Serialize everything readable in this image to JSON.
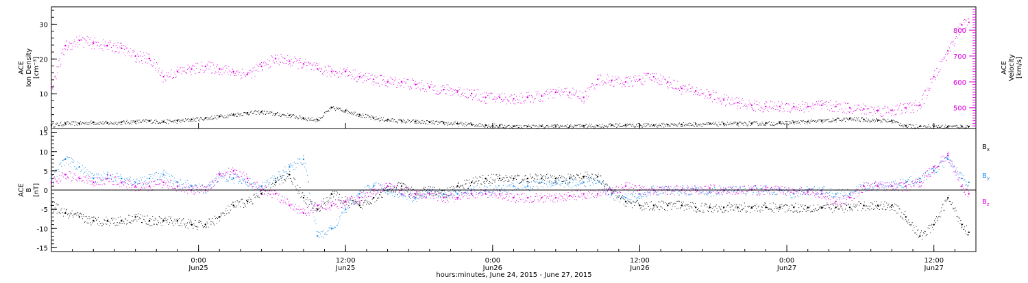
{
  "chart_data": [
    {
      "type": "scatter",
      "panel": "top",
      "ylabel_left": [
        "ACE",
        "Ion Density",
        "[cm⁻³]"
      ],
      "ylabel_right": [
        "ACE",
        "Velocity",
        "[km/s]"
      ],
      "ylim_left": [
        0,
        35
      ],
      "yticks_left": [
        0,
        10,
        20,
        30
      ],
      "ylim_right": [
        420,
        890
      ],
      "yticks_right": [
        500,
        600,
        700,
        800
      ],
      "series": [
        {
          "axis": "left",
          "color": "#000000",
          "x": [
            0,
            2,
            4,
            6,
            8,
            10,
            12,
            14,
            16,
            18,
            20,
            22,
            24,
            26,
            28,
            30,
            32,
            34,
            36,
            38,
            40,
            42,
            44,
            46,
            48,
            50,
            52,
            54,
            56,
            58,
            60,
            62,
            64,
            66,
            68,
            70,
            72,
            74,
            76,
            78,
            80,
            82,
            84,
            86,
            88,
            90,
            92,
            94,
            96,
            98,
            100,
            102,
            104,
            106,
            108,
            110,
            112,
            114,
            116,
            118,
            120,
            122,
            124,
            126,
            128,
            130,
            131
          ],
          "y": [
            1.0,
            1.5,
            1.5,
            1.8,
            1.6,
            1.8,
            2.0,
            2.2,
            2.0,
            2.2,
            2.6,
            3.0,
            3.5,
            4.0,
            4.5,
            4.8,
            4.2,
            3.8,
            3.0,
            2.5,
            6.0,
            5.2,
            4.0,
            3.0,
            2.5,
            2.2,
            2.0,
            1.8,
            1.6,
            1.4,
            1.2,
            1.0,
            0.8,
            0.6,
            0.6,
            0.6,
            0.7,
            0.7,
            0.8,
            0.8,
            1.0,
            1.0,
            1.0,
            1.0,
            1.1,
            1.2,
            1.3,
            1.3,
            1.4,
            1.4,
            1.5,
            1.5,
            1.6,
            1.8,
            2.0,
            2.2,
            2.5,
            2.8,
            2.6,
            2.4,
            2.2,
            0.8,
            0.6,
            0.6,
            0.6,
            0.6,
            0.6
          ]
        },
        {
          "axis": "right",
          "color": "#e000e0",
          "x": [
            0,
            2,
            4,
            6,
            8,
            10,
            12,
            14,
            16,
            18,
            20,
            22,
            24,
            26,
            28,
            30,
            32,
            34,
            36,
            38,
            40,
            42,
            44,
            46,
            48,
            50,
            52,
            54,
            56,
            58,
            60,
            62,
            64,
            66,
            68,
            70,
            72,
            74,
            76,
            78,
            80,
            82,
            84,
            86,
            88,
            90,
            92,
            94,
            96,
            98,
            100,
            102,
            104,
            106,
            108,
            110,
            112,
            114,
            116,
            118,
            120,
            122,
            124,
            126,
            128,
            130,
            131
          ],
          "y": [
            580,
            740,
            760,
            750,
            740,
            730,
            700,
            690,
            620,
            640,
            650,
            660,
            650,
            640,
            630,
            660,
            690,
            680,
            670,
            650,
            640,
            640,
            620,
            610,
            600,
            600,
            590,
            580,
            570,
            565,
            555,
            540,
            540,
            535,
            540,
            545,
            560,
            560,
            540,
            610,
            605,
            600,
            610,
            620,
            600,
            575,
            565,
            550,
            530,
            520,
            510,
            505,
            505,
            505,
            505,
            510,
            505,
            500,
            495,
            490,
            490,
            500,
            510,
            620,
            720,
            820,
            830
          ]
        }
      ]
    },
    {
      "type": "scatter",
      "panel": "bottom",
      "ylabel_left": [
        "ACE",
        "B",
        "[nT]"
      ],
      "ylim_left": [
        -16,
        16
      ],
      "yticks_left": [
        -15,
        -10,
        -5,
        0,
        5,
        10,
        15
      ],
      "legend": [
        "Bx",
        "By",
        "Bz"
      ],
      "legend_position": "right",
      "series": [
        {
          "name": "Bx",
          "color": "#000000",
          "x": [
            0,
            2,
            4,
            6,
            8,
            10,
            12,
            14,
            16,
            18,
            20,
            22,
            24,
            26,
            28,
            30,
            32,
            34,
            36,
            38,
            40,
            42,
            44,
            46,
            48,
            50,
            52,
            54,
            56,
            58,
            60,
            62,
            64,
            66,
            68,
            70,
            72,
            74,
            76,
            78,
            80,
            82,
            84,
            86,
            88,
            90,
            92,
            94,
            96,
            98,
            100,
            102,
            104,
            106,
            108,
            110,
            112,
            114,
            116,
            118,
            120,
            122,
            124,
            126,
            128,
            130,
            131
          ],
          "y": [
            -4,
            -6,
            -7,
            -8,
            -8,
            -8,
            -7,
            -8,
            -8,
            -8,
            -9,
            -9,
            -7,
            -4,
            -3,
            -1,
            2,
            4,
            -2,
            -5,
            -1,
            -3,
            -4,
            -2,
            0,
            1,
            -1,
            0,
            -1,
            1,
            2,
            3,
            3,
            3,
            3,
            3,
            3,
            3,
            3.5,
            3.5,
            -1,
            -3,
            -4,
            -4,
            -4,
            -4,
            -4.5,
            -4.5,
            -4.5,
            -4.5,
            -4.5,
            -4.5,
            -4.5,
            -4.5,
            -4.5,
            -4.5,
            -4.5,
            -4.5,
            -4,
            -4,
            -4,
            -7,
            -12,
            -9,
            -2,
            -9,
            -11
          ]
        },
        {
          "name": "By",
          "color": "#1e8ce8",
          "x": [
            0,
            2,
            4,
            6,
            8,
            10,
            12,
            14,
            16,
            18,
            20,
            22,
            24,
            26,
            28,
            30,
            32,
            34,
            36,
            38,
            40,
            42,
            44,
            46,
            48,
            50,
            52,
            54,
            56,
            58,
            60,
            62,
            64,
            66,
            68,
            70,
            72,
            74,
            76,
            78,
            80,
            82,
            84,
            86,
            88,
            90,
            92,
            94,
            96,
            98,
            100,
            102,
            104,
            106,
            108,
            110,
            112,
            114,
            116,
            118,
            120,
            122,
            124,
            126,
            128,
            130,
            131
          ],
          "y": [
            3,
            8,
            6,
            3,
            4,
            3,
            2,
            3,
            4,
            2,
            1,
            0,
            4,
            3,
            2,
            1,
            3,
            6,
            8,
            -12,
            -10,
            -5,
            -1,
            1,
            0,
            -1,
            -2,
            0,
            -1,
            -1,
            0,
            0,
            0,
            1,
            1,
            2,
            2,
            2,
            2,
            2.5,
            -1,
            -2,
            -1,
            0,
            0,
            0,
            0,
            -0.5,
            0,
            0,
            0,
            0,
            0,
            -1,
            0,
            0,
            -1,
            -1,
            1,
            1,
            1,
            2,
            3,
            5,
            8,
            3,
            2
          ]
        },
        {
          "name": "Bz",
          "color": "#e000e0",
          "x": [
            0,
            2,
            4,
            6,
            8,
            10,
            12,
            14,
            16,
            18,
            20,
            22,
            24,
            26,
            28,
            30,
            32,
            34,
            36,
            38,
            40,
            42,
            44,
            46,
            48,
            50,
            52,
            54,
            56,
            58,
            60,
            62,
            64,
            66,
            68,
            70,
            72,
            74,
            76,
            78,
            80,
            82,
            84,
            86,
            88,
            90,
            92,
            94,
            96,
            98,
            100,
            102,
            104,
            106,
            108,
            110,
            112,
            114,
            116,
            118,
            120,
            122,
            124,
            126,
            128,
            130,
            131
          ],
          "y": [
            2,
            4,
            3,
            2,
            3,
            2,
            1,
            1,
            2,
            1,
            0,
            0,
            4,
            5,
            3,
            0,
            -1,
            -4,
            -6,
            -4,
            -4,
            -3,
            -2,
            0,
            1,
            0,
            -1,
            -1,
            -2,
            -2,
            -1,
            -1,
            -1,
            -2,
            -2,
            -2,
            -2,
            -1.5,
            -1,
            -1,
            0,
            1,
            0,
            0,
            0,
            0,
            0,
            0.5,
            0,
            0,
            0,
            0,
            0,
            0,
            -0.5,
            -1,
            -3,
            -2,
            1,
            1,
            1,
            1,
            2,
            6,
            9,
            1,
            -1
          ]
        }
      ]
    }
  ],
  "xaxis": {
    "range": [
      0,
      132
    ],
    "ticks": [
      {
        "x": 21,
        "time": "0:00",
        "date": "Jun25"
      },
      {
        "x": 42,
        "time": "12:00",
        "date": "Jun25"
      },
      {
        "x": 63,
        "time": "0:00",
        "date": "Jun26"
      },
      {
        "x": 84,
        "time": "12:00",
        "date": "Jun26"
      },
      {
        "x": 105,
        "time": "0:00",
        "date": "Jun27"
      },
      {
        "x": 126,
        "time": "12:00",
        "date": "Jun27"
      }
    ],
    "xlabel": "hours:minutes, June 24, 2015 - June 27, 2015"
  },
  "legend_labels": {
    "bx": {
      "main": "B",
      "sub": "x",
      "color": "#000000"
    },
    "by": {
      "main": "B",
      "sub": "y",
      "color": "#1e8ce8"
    },
    "bz": {
      "main": "B",
      "sub": "z",
      "color": "#e000e0"
    }
  }
}
